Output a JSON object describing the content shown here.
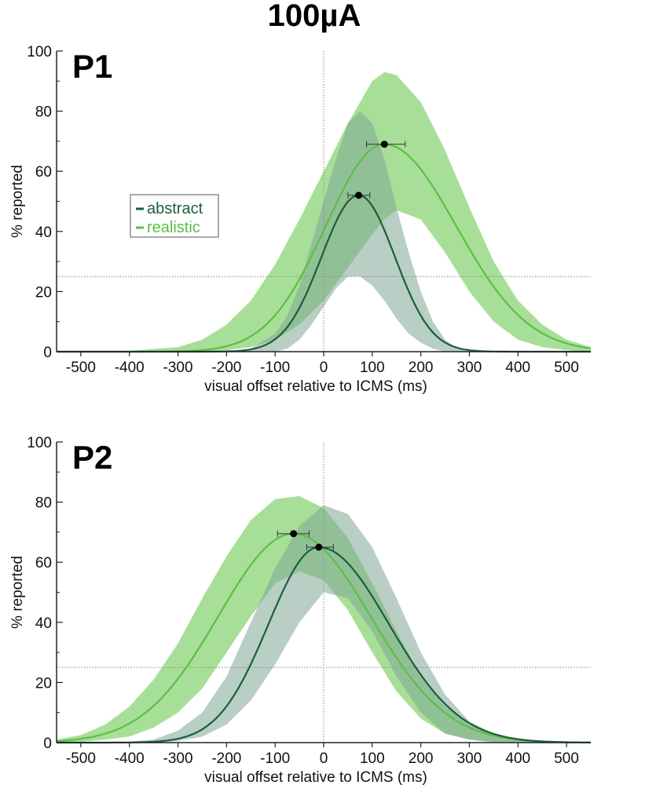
{
  "title": "100µA",
  "colors": {
    "abstract_line": "#1b5e3a",
    "abstract_band": "#7fa595",
    "realistic_line": "#5bbf45",
    "realistic_band": "#a8df98",
    "overlap_band": "#6a9e6e",
    "reference_line": "#888888",
    "axis": "#222222"
  },
  "legend": {
    "abstract": "abstract",
    "realistic": "realistic"
  },
  "chart_data": [
    {
      "type": "line",
      "panel_label": "P1",
      "xlabel": "visual offset relative to ICMS (ms)",
      "ylabel": "% reported",
      "xlim": [
        -550,
        550
      ],
      "ylim": [
        0,
        100
      ],
      "xticks": [
        -500,
        -400,
        -300,
        -200,
        -100,
        0,
        100,
        200,
        300,
        400,
        500
      ],
      "yticks": [
        0,
        20,
        40,
        60,
        80,
        100
      ],
      "chance_level": 25,
      "zero_line_x": 0,
      "legend_position": "middle-left",
      "series": [
        {
          "name": "abstract",
          "peak_x": 72,
          "peak_y": 52,
          "peak_err_x": [
            50,
            95
          ],
          "band": [
            [
              -200,
              0,
              0
            ],
            [
              -150,
              0,
              1
            ],
            [
              -100,
              0,
              6
            ],
            [
              -75,
              1,
              12
            ],
            [
              -50,
              4,
              22
            ],
            [
              -25,
              9,
              36
            ],
            [
              0,
              15,
              50
            ],
            [
              25,
              21,
              64
            ],
            [
              50,
              25,
              76
            ],
            [
              75,
              25,
              80
            ],
            [
              100,
              22,
              76
            ],
            [
              125,
              17,
              64
            ],
            [
              150,
              11,
              48
            ],
            [
              175,
              6,
              33
            ],
            [
              200,
              3,
              20
            ],
            [
              225,
              1,
              10
            ],
            [
              250,
              0,
              4
            ],
            [
              275,
              0,
              1
            ],
            [
              300,
              0,
              0
            ]
          ]
        },
        {
          "name": "realistic",
          "peak_x": 125,
          "peak_y": 69,
          "peak_err_x": [
            88,
            168
          ],
          "band": [
            [
              -550,
              0,
              0
            ],
            [
              -500,
              0,
              0
            ],
            [
              -400,
              0,
              0.3
            ],
            [
              -300,
              0,
              1.5
            ],
            [
              -250,
              0,
              4
            ],
            [
              -200,
              0.5,
              9
            ],
            [
              -150,
              1.5,
              17
            ],
            [
              -100,
              4,
              29
            ],
            [
              -50,
              9,
              44
            ],
            [
              0,
              17,
              60
            ],
            [
              50,
              28,
              76
            ],
            [
              100,
              39,
              90
            ],
            [
              125,
              44,
              93
            ],
            [
              150,
              47,
              92
            ],
            [
              200,
              44,
              83
            ],
            [
              250,
              33,
              67
            ],
            [
              300,
              20,
              48
            ],
            [
              350,
              10,
              30
            ],
            [
              400,
              4,
              17
            ],
            [
              450,
              1.5,
              9
            ],
            [
              500,
              0.5,
              4
            ],
            [
              550,
              0,
              1.5
            ]
          ]
        }
      ]
    },
    {
      "type": "line",
      "panel_label": "P2",
      "xlabel": "visual offset relative to ICMS (ms)",
      "ylabel": "% reported",
      "xlim": [
        -550,
        550
      ],
      "ylim": [
        0,
        100
      ],
      "xticks": [
        -500,
        -400,
        -300,
        -200,
        -100,
        0,
        100,
        200,
        300,
        400,
        500
      ],
      "yticks": [
        0,
        20,
        40,
        60,
        80,
        100
      ],
      "chance_level": 25,
      "zero_line_x": 0,
      "series": [
        {
          "name": "abstract",
          "peak_x": -10,
          "peak_y": 65,
          "peak_err_x": [
            -35,
            20
          ],
          "band": [
            [
              -450,
              0,
              0
            ],
            [
              -400,
              0,
              0.3
            ],
            [
              -350,
              0,
              1
            ],
            [
              -300,
              0.5,
              4
            ],
            [
              -250,
              2,
              10
            ],
            [
              -200,
              6,
              22
            ],
            [
              -150,
              14,
              40
            ],
            [
              -100,
              26,
              58
            ],
            [
              -50,
              40,
              72
            ],
            [
              0,
              50,
              79
            ],
            [
              50,
              48,
              76
            ],
            [
              100,
              37,
              65
            ],
            [
              150,
              22,
              48
            ],
            [
              200,
              10,
              30
            ],
            [
              250,
              3,
              16
            ],
            [
              300,
              1,
              7
            ],
            [
              350,
              0,
              3
            ],
            [
              400,
              0,
              1
            ],
            [
              450,
              0,
              0
            ]
          ]
        },
        {
          "name": "realistic",
          "peak_x": -62,
          "peak_y": 69.5,
          "peak_err_x": [
            -95,
            -30
          ],
          "band": [
            [
              -550,
              0,
              1
            ],
            [
              -500,
              0.3,
              2.5
            ],
            [
              -450,
              1,
              6
            ],
            [
              -400,
              2,
              12
            ],
            [
              -350,
              5,
              21
            ],
            [
              -300,
              10,
              33
            ],
            [
              -250,
              18,
              48
            ],
            [
              -200,
              30,
              62
            ],
            [
              -150,
              42,
              74
            ],
            [
              -100,
              53,
              81
            ],
            [
              -50,
              57,
              82
            ],
            [
              0,
              54,
              78
            ],
            [
              50,
              44,
              68
            ],
            [
              100,
              30,
              53
            ],
            [
              150,
              17,
              37
            ],
            [
              200,
              8,
              22
            ],
            [
              250,
              3,
              12
            ],
            [
              300,
              1,
              6
            ],
            [
              350,
              0.3,
              3
            ],
            [
              400,
              0,
              1.2
            ],
            [
              450,
              0,
              0.5
            ],
            [
              500,
              0,
              0.2
            ],
            [
              550,
              0,
              0
            ]
          ]
        }
      ]
    }
  ]
}
